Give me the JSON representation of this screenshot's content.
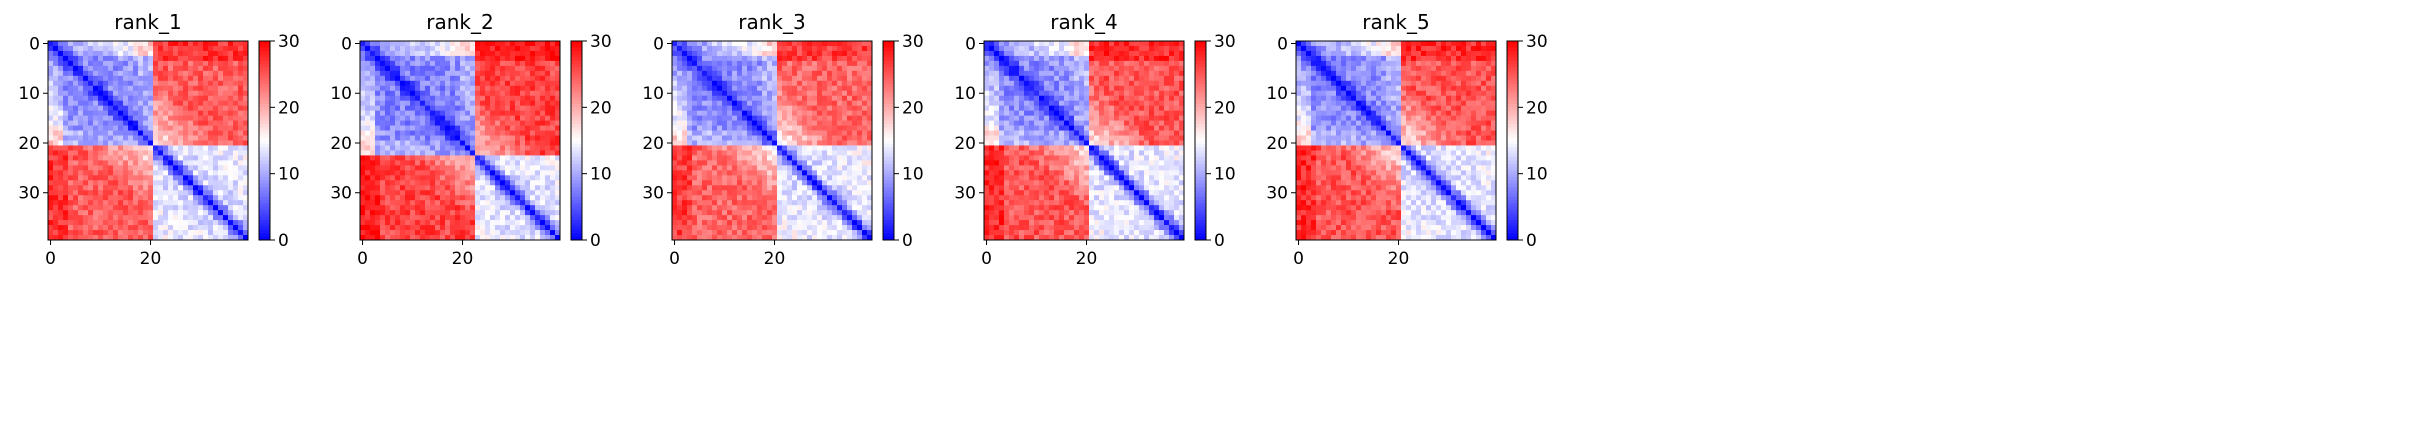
{
  "chart_data": [
    {
      "type": "heatmap",
      "title": "rank_1",
      "size": 40,
      "xticks": [
        0,
        20
      ],
      "yticks": [
        0,
        10,
        20,
        30
      ],
      "colorbar": {
        "min": 0,
        "max": 30,
        "ticks": [
          0,
          10,
          20,
          30
        ],
        "colormap": "bwr"
      },
      "blocks": [
        {
          "start": 0,
          "end": 21,
          "inner": 7.5
        },
        {
          "start": 21,
          "end": 40,
          "inner": 12.5
        }
      ],
      "cross_block": 24.5,
      "diagonal": 1.5,
      "noise": 2.5
    },
    {
      "type": "heatmap",
      "title": "rank_2",
      "size": 40,
      "xticks": [
        0,
        20
      ],
      "yticks": [
        0,
        10,
        20,
        30
      ],
      "colorbar": {
        "min": 0,
        "max": 30,
        "ticks": [
          0,
          10,
          20,
          30
        ],
        "colormap": "bwr"
      },
      "blocks": [
        {
          "start": 0,
          "end": 23,
          "inner": 7
        },
        {
          "start": 23,
          "end": 40,
          "inner": 12.5
        }
      ],
      "cross_block": 26,
      "diagonal": 1.5,
      "noise": 2.5
    },
    {
      "type": "heatmap",
      "title": "rank_3",
      "size": 40,
      "xticks": [
        0,
        20
      ],
      "yticks": [
        0,
        10,
        20,
        30
      ],
      "colorbar": {
        "min": 0,
        "max": 30,
        "ticks": [
          0,
          10,
          20,
          30
        ],
        "colormap": "bwr"
      },
      "blocks": [
        {
          "start": 0,
          "end": 21,
          "inner": 7.5
        },
        {
          "start": 21,
          "end": 40,
          "inner": 12.5
        }
      ],
      "cross_block": 24,
      "diagonal": 1.5,
      "noise": 2.5
    },
    {
      "type": "heatmap",
      "title": "rank_4",
      "size": 40,
      "xticks": [
        0,
        20
      ],
      "yticks": [
        0,
        10,
        20,
        30
      ],
      "colorbar": {
        "min": 0,
        "max": 30,
        "ticks": [
          0,
          10,
          20,
          30
        ],
        "colormap": "bwr"
      },
      "blocks": [
        {
          "start": 0,
          "end": 21,
          "inner": 7.5
        },
        {
          "start": 21,
          "end": 40,
          "inner": 12.5
        }
      ],
      "cross_block": 25,
      "diagonal": 1.5,
      "noise": 2.5
    },
    {
      "type": "heatmap",
      "title": "rank_5",
      "size": 40,
      "xticks": [
        0,
        20
      ],
      "yticks": [
        0,
        10,
        20,
        30
      ],
      "colorbar": {
        "min": 0,
        "max": 30,
        "ticks": [
          0,
          10,
          20,
          30
        ],
        "colormap": "bwr"
      },
      "blocks": [
        {
          "start": 0,
          "end": 21,
          "inner": 7.5
        },
        {
          "start": 21,
          "end": 40,
          "inner": 12.5
        }
      ],
      "cross_block": 25,
      "diagonal": 1.5,
      "noise": 2.5
    }
  ]
}
